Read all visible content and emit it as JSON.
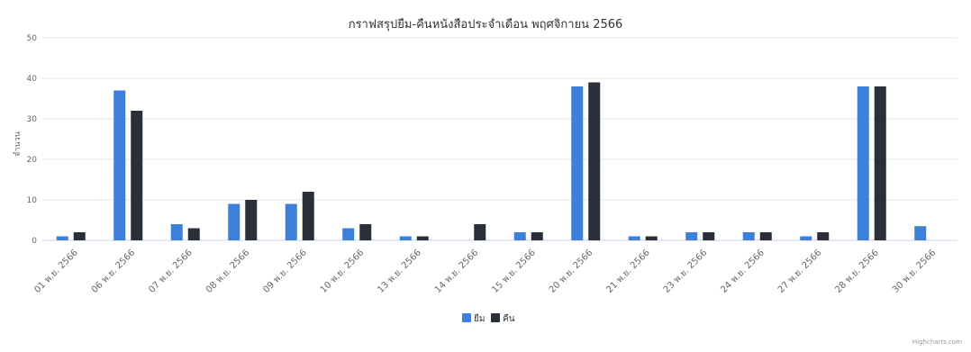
{
  "chart_data": {
    "type": "bar",
    "title": "กราฟสรุปยืม-คืนหนังสือประจำเดือน พฤศจิกายน 2566",
    "ylabel": "จำนวน",
    "xlabel": "",
    "ylim": [
      0,
      50
    ],
    "yticks": [
      0,
      10,
      20,
      30,
      40,
      50
    ],
    "grid": true,
    "legend_placement": "bottom-center",
    "categories": [
      "01 พ.ย. 2566",
      "06 พ.ย. 2566",
      "07 พ.ย. 2566",
      "08 พ.ย. 2566",
      "09 พ.ย. 2566",
      "10 พ.ย. 2566",
      "13 พ.ย. 2566",
      "14 พ.ย. 2566",
      "15 พ.ย. 2566",
      "20 พ.ย. 2566",
      "21 พ.ย. 2566",
      "23 พ.ย. 2566",
      "24 พ.ย. 2566",
      "27 พ.ย. 2566",
      "28 พ.ย. 2566",
      "30 พ.ย. 2566"
    ],
    "series": [
      {
        "name": "ยืม",
        "color": "#3d7fd9",
        "values": [
          1,
          37,
          4,
          9,
          9,
          3,
          1,
          0,
          2,
          38,
          1,
          2,
          2,
          1,
          38,
          3.5
        ]
      },
      {
        "name": "คืน",
        "color": "#2b2f3a",
        "values": [
          2,
          32,
          3,
          10,
          12,
          4,
          1,
          4,
          2,
          39,
          1,
          2,
          2,
          2,
          38,
          0
        ]
      }
    ]
  },
  "credits": "Highcharts.com"
}
